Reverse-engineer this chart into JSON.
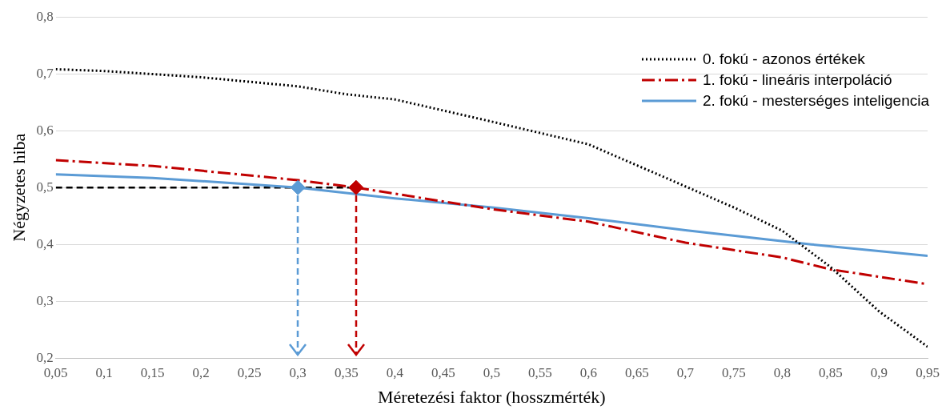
{
  "chart_data": {
    "type": "line",
    "xlabel": "Méretezési faktor (hosszmérték)",
    "ylabel": "Négyzetes hiba",
    "xlim": [
      0.05,
      0.95
    ],
    "xticks": [
      {
        "value": 0.05,
        "label": "0,05"
      },
      {
        "value": 0.1,
        "label": "0,1"
      },
      {
        "value": 0.15,
        "label": "0,15"
      },
      {
        "value": 0.2,
        "label": "0,2"
      },
      {
        "value": 0.25,
        "label": "0,25"
      },
      {
        "value": 0.3,
        "label": "0,3"
      },
      {
        "value": 0.35,
        "label": "0,35"
      },
      {
        "value": 0.4,
        "label": "0,4"
      },
      {
        "value": 0.45,
        "label": "0,45"
      },
      {
        "value": 0.5,
        "label": "0,5"
      },
      {
        "value": 0.55,
        "label": "0,55"
      },
      {
        "value": 0.6,
        "label": "0,6"
      },
      {
        "value": 0.65,
        "label": "0,65"
      },
      {
        "value": 0.7,
        "label": "0,7"
      },
      {
        "value": 0.75,
        "label": "0,75"
      },
      {
        "value": 0.8,
        "label": "0,8"
      },
      {
        "value": 0.85,
        "label": "0,85"
      },
      {
        "value": 0.9,
        "label": "0,9"
      },
      {
        "value": 0.95,
        "label": "0,95"
      }
    ],
    "ylim": [
      0.2,
      0.8
    ],
    "yticks": [
      {
        "value": 0.2,
        "label": "0,2"
      },
      {
        "value": 0.3,
        "label": "0,3"
      },
      {
        "value": 0.4,
        "label": "0,4"
      },
      {
        "value": 0.5,
        "label": "0,5"
      },
      {
        "value": 0.6,
        "label": "0,6"
      },
      {
        "value": 0.7,
        "label": "0,7"
      },
      {
        "value": 0.8,
        "label": "0,8"
      }
    ],
    "grid": "y",
    "legend": "top right",
    "marker": "none",
    "series": [
      {
        "name": "0. fokú - azonos értékek",
        "color": "#000000",
        "line_style": "dotted",
        "x": [
          0.05,
          0.1,
          0.2,
          0.3,
          0.35,
          0.4,
          0.5,
          0.6,
          0.7,
          0.75,
          0.8,
          0.85,
          0.9,
          0.95
        ],
        "values": [
          0.708,
          0.705,
          0.694,
          0.678,
          0.664,
          0.655,
          0.616,
          0.576,
          0.502,
          0.465,
          0.424,
          0.36,
          0.282,
          0.22
        ]
      },
      {
        "name": "1. fokú - lineáris interpoláció",
        "color": "#c00000",
        "line_style": "dashed",
        "x": [
          0.05,
          0.15,
          0.3,
          0.36,
          0.5,
          0.6,
          0.7,
          0.8,
          0.85,
          0.95
        ],
        "values": [
          0.548,
          0.538,
          0.513,
          0.5,
          0.462,
          0.44,
          0.403,
          0.377,
          0.356,
          0.33
        ]
      },
      {
        "name": "2. fokú - mesterséges inteligencia",
        "color": "#5b9bd5",
        "line_style": "solid",
        "x": [
          0.05,
          0.15,
          0.3,
          0.4,
          0.5,
          0.6,
          0.7,
          0.83,
          0.95
        ],
        "values": [
          0.523,
          0.517,
          0.5,
          0.481,
          0.465,
          0.446,
          0.425,
          0.4,
          0.38
        ]
      },
      {
        "type": "line",
        "color": "#000000",
        "line_style": "dashed",
        "x": [
          0.05,
          0.36
        ],
        "values": [
          0.5,
          0.5
        ]
      },
      {
        "type": "scatter",
        "color": "#5b9bd5",
        "marker": "diamond",
        "x": [
          0.3
        ],
        "values": [
          0.5
        ]
      },
      {
        "type": "scatter",
        "color": "#c00000",
        "marker": "diamond",
        "x": [
          0.36
        ],
        "values": [
          0.5
        ]
      }
    ]
  }
}
